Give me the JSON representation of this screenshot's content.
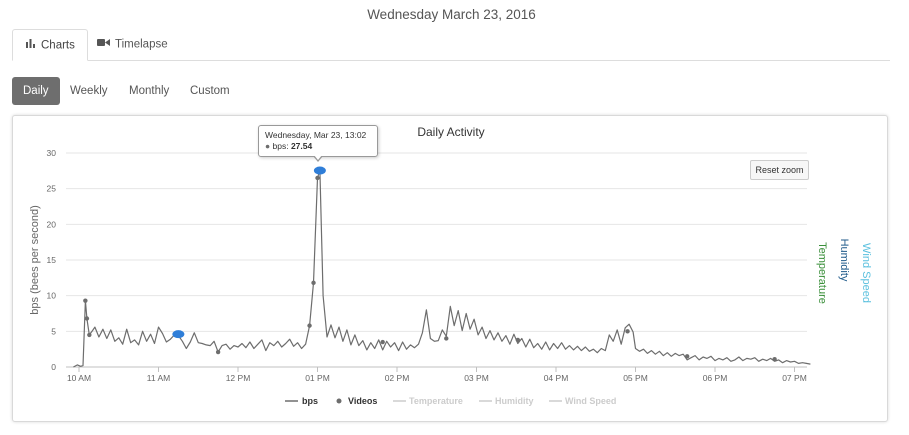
{
  "page": {
    "date_title": "Wednesday March 23, 2016"
  },
  "tabs": [
    {
      "label": "Charts",
      "icon": "bar-chart-icon",
      "active": true
    },
    {
      "label": "Timelapse",
      "icon": "video-camera-icon",
      "active": false
    }
  ],
  "periods": [
    {
      "label": "Daily",
      "active": true
    },
    {
      "label": "Weekly",
      "active": false
    },
    {
      "label": "Monthly",
      "active": false
    },
    {
      "label": "Custom",
      "active": false
    }
  ],
  "reset_zoom_label": "Reset zoom",
  "tooltip": {
    "header": "Wednesday, Mar 23, 13:02",
    "series_label": "bps: ",
    "value": "27.54"
  },
  "colors": {
    "bps_line": "#6d6d6d",
    "videos_marker": "#2f7ed8",
    "temperature_axis": "#3a8f3a",
    "humidity_axis": "#1f5a8a",
    "wind_axis": "#5bc0de",
    "legend_hidden": "#cccccc",
    "active_pill": "#6e6e6e"
  },
  "chart_data": {
    "type": "line",
    "title": "Daily Activity",
    "ylabel": "bps (bees per second)",
    "xlabel": "",
    "ylim": [
      0,
      30
    ],
    "yticks": [
      0,
      5,
      10,
      15,
      20,
      25,
      30
    ],
    "x_tick_labels": [
      "10 AM",
      "11 AM",
      "12 PM",
      "01 PM",
      "02 PM",
      "03 PM",
      "04 PM",
      "05 PM",
      "06 PM",
      "07 PM"
    ],
    "x_hour_range": [
      9.93,
      19.3
    ],
    "secondary_axes": [
      "Temperature",
      "Humidity",
      "Wind Speed"
    ],
    "legend": [
      {
        "name": "bps",
        "type": "line",
        "visible": true
      },
      {
        "name": "Videos",
        "type": "marker",
        "visible": true
      },
      {
        "name": "Temperature",
        "type": "line",
        "visible": false
      },
      {
        "name": "Humidity",
        "type": "line",
        "visible": false
      },
      {
        "name": "Wind Speed",
        "type": "line",
        "visible": false
      }
    ],
    "legend_position": "bottom-center",
    "grid": true,
    "series": [
      {
        "name": "bps",
        "points": [
          [
            9.93,
            0.0
          ],
          [
            9.98,
            0.3
          ],
          [
            10.02,
            0.1
          ],
          [
            10.05,
            0.2
          ],
          [
            10.08,
            9.3
          ],
          [
            10.1,
            6.8
          ],
          [
            10.13,
            4.5
          ],
          [
            10.17,
            5.1
          ],
          [
            10.2,
            5.6
          ],
          [
            10.25,
            4.2
          ],
          [
            10.3,
            5.3
          ],
          [
            10.35,
            4.0
          ],
          [
            10.4,
            5.2
          ],
          [
            10.45,
            3.6
          ],
          [
            10.5,
            4.1
          ],
          [
            10.55,
            3.2
          ],
          [
            10.6,
            5.3
          ],
          [
            10.65,
            3.4
          ],
          [
            10.7,
            3.8
          ],
          [
            10.75,
            3.1
          ],
          [
            10.8,
            5.0
          ],
          [
            10.85,
            3.6
          ],
          [
            10.9,
            4.6
          ],
          [
            10.95,
            3.3
          ],
          [
            11.0,
            5.6
          ],
          [
            11.05,
            4.7
          ],
          [
            11.1,
            3.5
          ],
          [
            11.15,
            3.9
          ],
          [
            11.2,
            4.5
          ],
          [
            11.25,
            4.4
          ],
          [
            11.3,
            3.6
          ],
          [
            11.35,
            2.6
          ],
          [
            11.4,
            3.5
          ],
          [
            11.45,
            4.8
          ],
          [
            11.5,
            3.4
          ],
          [
            11.55,
            3.3
          ],
          [
            11.6,
            3.1
          ],
          [
            11.65,
            3.0
          ],
          [
            11.7,
            3.6
          ],
          [
            11.75,
            2.1
          ],
          [
            11.8,
            3.0
          ],
          [
            11.85,
            3.2
          ],
          [
            11.9,
            2.5
          ],
          [
            11.95,
            3.0
          ],
          [
            12.0,
            2.8
          ],
          [
            12.05,
            3.3
          ],
          [
            12.1,
            2.7
          ],
          [
            12.15,
            3.5
          ],
          [
            12.2,
            2.6
          ],
          [
            12.25,
            3.2
          ],
          [
            12.3,
            3.8
          ],
          [
            12.35,
            2.3
          ],
          [
            12.4,
            3.4
          ],
          [
            12.45,
            3.0
          ],
          [
            12.5,
            3.6
          ],
          [
            12.55,
            2.8
          ],
          [
            12.6,
            3.3
          ],
          [
            12.65,
            3.9
          ],
          [
            12.7,
            2.9
          ],
          [
            12.75,
            3.4
          ],
          [
            12.8,
            2.6
          ],
          [
            12.85,
            3.2
          ],
          [
            12.9,
            5.8
          ],
          [
            12.95,
            11.8
          ],
          [
            13.0,
            26.5
          ],
          [
            13.03,
            27.54
          ],
          [
            13.07,
            10.0
          ],
          [
            13.12,
            4.2
          ],
          [
            13.17,
            5.9
          ],
          [
            13.22,
            4.1
          ],
          [
            13.27,
            5.6
          ],
          [
            13.32,
            3.6
          ],
          [
            13.37,
            5.2
          ],
          [
            13.42,
            3.1
          ],
          [
            13.47,
            4.5
          ],
          [
            13.52,
            3.0
          ],
          [
            13.57,
            3.7
          ],
          [
            13.62,
            2.4
          ],
          [
            13.67,
            3.4
          ],
          [
            13.72,
            2.6
          ],
          [
            13.77,
            3.8
          ],
          [
            13.82,
            2.4
          ],
          [
            13.87,
            3.6
          ],
          [
            13.92,
            2.8
          ],
          [
            13.97,
            3.4
          ],
          [
            14.02,
            2.3
          ],
          [
            14.07,
            3.5
          ],
          [
            14.12,
            2.5
          ],
          [
            14.17,
            3.1
          ],
          [
            14.22,
            2.7
          ],
          [
            14.27,
            3.2
          ],
          [
            14.32,
            4.8
          ],
          [
            14.37,
            8.0
          ],
          [
            14.42,
            4.0
          ],
          [
            14.47,
            3.6
          ],
          [
            14.52,
            3.7
          ],
          [
            14.57,
            5.2
          ],
          [
            14.62,
            4.3
          ],
          [
            14.67,
            8.5
          ],
          [
            14.72,
            5.8
          ],
          [
            14.77,
            7.9
          ],
          [
            14.82,
            5.1
          ],
          [
            14.87,
            7.5
          ],
          [
            14.92,
            5.3
          ],
          [
            14.97,
            6.7
          ],
          [
            15.02,
            4.5
          ],
          [
            15.07,
            5.6
          ],
          [
            15.12,
            4.0
          ],
          [
            15.17,
            5.1
          ],
          [
            15.22,
            3.8
          ],
          [
            15.27,
            4.8
          ],
          [
            15.32,
            3.6
          ],
          [
            15.37,
            4.4
          ],
          [
            15.42,
            3.2
          ],
          [
            15.47,
            4.6
          ],
          [
            15.52,
            3.3
          ],
          [
            15.57,
            4.0
          ],
          [
            15.62,
            2.8
          ],
          [
            15.67,
            3.9
          ],
          [
            15.72,
            2.7
          ],
          [
            15.77,
            3.3
          ],
          [
            15.82,
            2.5
          ],
          [
            15.87,
            3.5
          ],
          [
            15.92,
            2.4
          ],
          [
            15.97,
            3.3
          ],
          [
            16.02,
            2.6
          ],
          [
            16.07,
            3.4
          ],
          [
            16.12,
            2.5
          ],
          [
            16.17,
            3.0
          ],
          [
            16.22,
            2.4
          ],
          [
            16.27,
            2.9
          ],
          [
            16.32,
            2.3
          ],
          [
            16.37,
            2.8
          ],
          [
            16.42,
            2.2
          ],
          [
            16.47,
            2.5
          ],
          [
            16.52,
            2.0
          ],
          [
            16.57,
            2.6
          ],
          [
            16.62,
            2.3
          ],
          [
            16.67,
            4.5
          ],
          [
            16.72,
            3.6
          ],
          [
            16.77,
            5.2
          ],
          [
            16.82,
            3.2
          ],
          [
            16.87,
            5.5
          ],
          [
            16.92,
            6.0
          ],
          [
            16.97,
            4.9
          ],
          [
            17.0,
            2.6
          ],
          [
            17.05,
            2.2
          ],
          [
            17.1,
            2.5
          ],
          [
            17.15,
            1.9
          ],
          [
            17.2,
            2.3
          ],
          [
            17.25,
            1.8
          ],
          [
            17.3,
            2.2
          ],
          [
            17.35,
            1.6
          ],
          [
            17.4,
            2.0
          ],
          [
            17.45,
            1.5
          ],
          [
            17.5,
            1.9
          ],
          [
            17.55,
            1.6
          ],
          [
            17.6,
            1.8
          ],
          [
            17.65,
            1.0
          ],
          [
            17.7,
            1.3
          ],
          [
            17.75,
            1.6
          ],
          [
            17.8,
            1.0
          ],
          [
            17.85,
            1.4
          ],
          [
            17.9,
            1.2
          ],
          [
            17.95,
            1.5
          ],
          [
            18.0,
            0.9
          ],
          [
            18.05,
            1.2
          ],
          [
            18.1,
            1.0
          ],
          [
            18.15,
            1.3
          ],
          [
            18.2,
            0.8
          ],
          [
            18.25,
            1.0
          ],
          [
            18.3,
            1.4
          ],
          [
            18.35,
            0.9
          ],
          [
            18.4,
            1.2
          ],
          [
            18.45,
            1.1
          ],
          [
            18.5,
            1.3
          ],
          [
            18.55,
            0.8
          ],
          [
            18.6,
            1.1
          ],
          [
            18.65,
            0.9
          ],
          [
            18.7,
            1.2
          ],
          [
            18.75,
            0.8
          ],
          [
            18.8,
            1.0
          ],
          [
            18.85,
            0.6
          ],
          [
            18.9,
            0.9
          ],
          [
            18.95,
            0.7
          ],
          [
            19.0,
            0.8
          ],
          [
            19.05,
            0.5
          ],
          [
            19.1,
            0.6
          ],
          [
            19.15,
            0.5
          ],
          [
            19.2,
            0.4
          ]
        ]
      },
      {
        "name": "Videos",
        "points": [
          [
            10.08,
            9.3
          ],
          [
            10.1,
            6.8
          ],
          [
            10.13,
            4.5
          ],
          [
            11.75,
            2.1
          ],
          [
            12.9,
            5.8
          ],
          [
            12.95,
            11.8
          ],
          [
            13.0,
            26.5
          ],
          [
            13.82,
            3.5
          ],
          [
            14.62,
            4.0
          ],
          [
            15.52,
            3.8
          ],
          [
            16.9,
            5.0
          ],
          [
            17.65,
            1.5
          ],
          [
            18.75,
            1.1
          ]
        ],
        "highlighted": [
          [
            13.03,
            27.54
          ],
          [
            11.25,
            4.6
          ]
        ]
      }
    ]
  }
}
